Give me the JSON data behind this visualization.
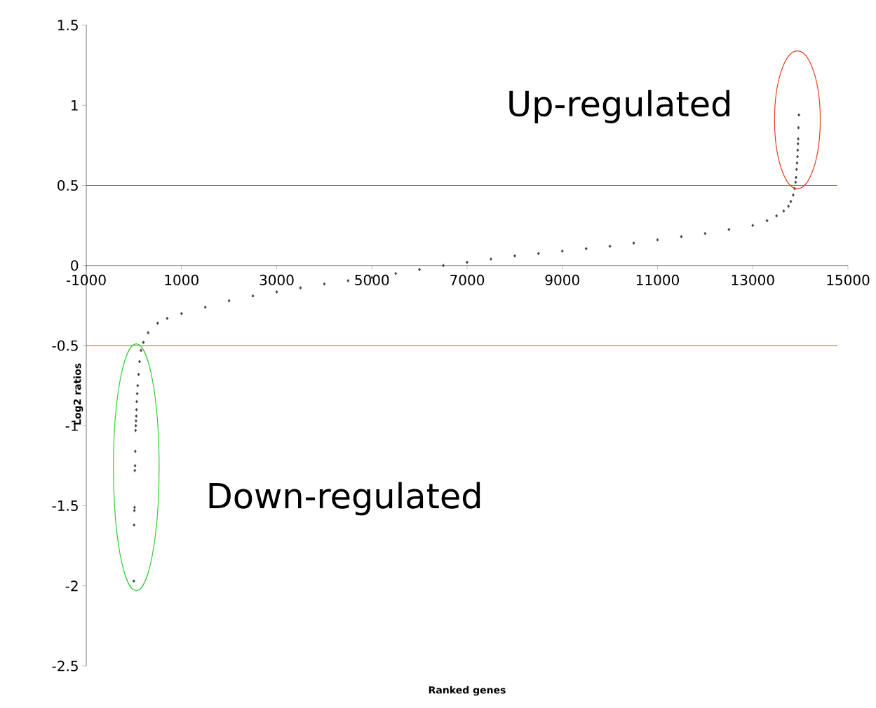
{
  "chart_data": {
    "type": "scatter",
    "xlabel": "Ranked genes",
    "ylabel": "Log2 ratios",
    "xlim": [
      -1000,
      15000
    ],
    "xticks": [
      -1000,
      1000,
      3000,
      5000,
      7000,
      9000,
      11000,
      13000,
      15000
    ],
    "ylim": [
      -2.5,
      1.5
    ],
    "yticks": [
      -2.5,
      -2,
      -1.5,
      -1,
      -0.5,
      0,
      0.5,
      1,
      1.5
    ],
    "marker": "diamond",
    "annotations": [
      "Up-regulated",
      "Down-regulated"
    ],
    "ref_lines": [
      {
        "axis": "y",
        "value": 0.5,
        "color": "#e0401f"
      },
      {
        "axis": "y",
        "value": -0.5,
        "color": "#e0401f"
      }
    ],
    "series": [
      {
        "color": "#404040",
        "x": [
          0,
          5,
          10,
          15,
          20,
          25,
          30,
          35,
          40,
          45,
          50,
          55,
          60,
          70,
          80,
          100,
          120,
          150,
          200,
          300,
          500,
          700,
          1000,
          1500,
          2000,
          2500,
          3000,
          3500,
          4000,
          4500,
          5000,
          5500,
          6000,
          6500,
          7000,
          7500,
          8000,
          8500,
          9000,
          9500,
          10000,
          10500,
          11000,
          11500,
          12000,
          12500,
          13000,
          13300,
          13500,
          13650,
          13750,
          13800,
          13850,
          13880,
          13900,
          13910,
          13920,
          13930,
          13940,
          13945,
          13950,
          13955,
          13960,
          13970
        ],
        "values": [
          -1.97,
          -1.62,
          -1.53,
          -1.51,
          -1.28,
          -1.25,
          -1.16,
          -1.03,
          -1.0,
          -0.97,
          -0.94,
          -0.9,
          -0.85,
          -0.8,
          -0.75,
          -0.68,
          -0.6,
          -0.53,
          -0.48,
          -0.42,
          -0.36,
          -0.33,
          -0.3,
          -0.26,
          -0.22,
          -0.19,
          -0.165,
          -0.14,
          -0.115,
          -0.095,
          -0.075,
          -0.05,
          -0.025,
          0,
          0.02,
          0.04,
          0.06,
          0.075,
          0.09,
          0.105,
          0.12,
          0.14,
          0.16,
          0.18,
          0.2,
          0.225,
          0.25,
          0.28,
          0.31,
          0.34,
          0.37,
          0.4,
          0.44,
          0.48,
          0.52,
          0.55,
          0.6,
          0.64,
          0.68,
          0.72,
          0.76,
          0.79,
          0.86,
          0.94
        ]
      }
    ]
  }
}
